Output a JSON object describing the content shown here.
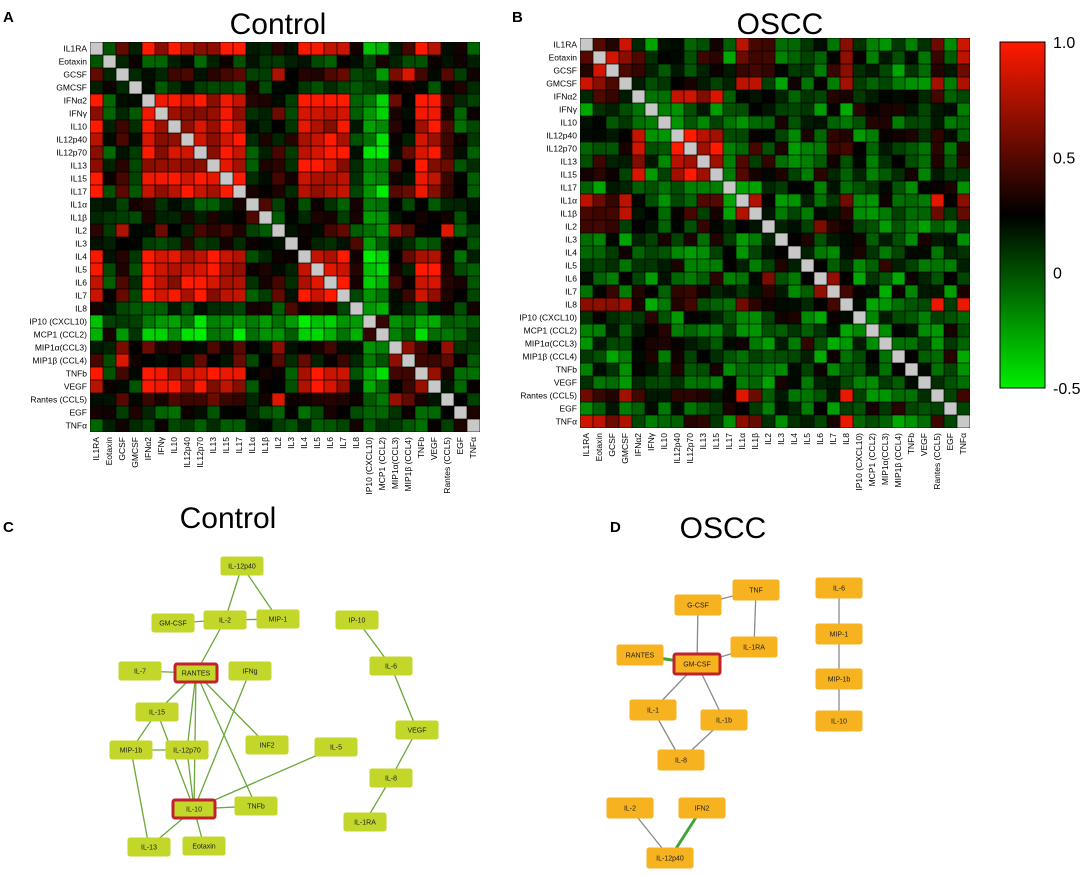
{
  "panels": {
    "A": {
      "label": "A",
      "title": "Control"
    },
    "B": {
      "label": "B",
      "title": "OSCC"
    },
    "C": {
      "label": "C",
      "title": "Control"
    },
    "D": {
      "label": "D",
      "title": "OSCC"
    }
  },
  "colorbar": {
    "ticks": [
      {
        "value": 1.0,
        "label": "1.0"
      },
      {
        "value": 0.5,
        "label": "0.5"
      },
      {
        "value": 0,
        "label": "0"
      },
      {
        "value": -0.5,
        "label": "-0.5"
      }
    ],
    "range": [
      -0.5,
      1.0
    ],
    "colors": {
      "high": "#ff1a00",
      "mid": "#000000",
      "low": "#00ee00",
      "diag": "#c8c8c8"
    }
  },
  "chart_data": [
    {
      "type": "heatmap",
      "title": "Control",
      "labels": [
        "IL1RA",
        "Eotaxin",
        "GCSF",
        "GMCSF",
        "IFNα2",
        "IFNγ",
        "IL10",
        "IL12p40",
        "IL12p70",
        "IL13",
        "IL15",
        "IL17",
        "IL1α",
        "IL1β",
        "IL2",
        "IL3",
        "IL4",
        "IL5",
        "IL6",
        "IL7",
        "IL8",
        "IP10 (CXCL10)",
        "MCP1 (CCL2)",
        "MIP1α(CCL3)",
        "MIP1β (CCL4)",
        "TNFb",
        "VEGF",
        "Rantes (CCL5)",
        "EGF",
        "TNFα"
      ],
      "groups": [
        2,
        0,
        1,
        0,
        2,
        2,
        2,
        2,
        2,
        2,
        2,
        2,
        3,
        3,
        1,
        3,
        2,
        2,
        2,
        2,
        3,
        4,
        4,
        1,
        1,
        2,
        2,
        1,
        0,
        0
      ],
      "group_corr": [
        [
          0.3,
          0.15,
          0.1,
          0.15,
          0.1
        ],
        [
          0.15,
          0.7,
          0.35,
          0.1,
          -0.1
        ],
        [
          0.1,
          0.35,
          0.85,
          0.15,
          -0.3
        ],
        [
          0.15,
          0.1,
          0.15,
          0.35,
          -0.1
        ],
        [
          0.1,
          -0.1,
          -0.3,
          -0.1,
          0.45
        ]
      ],
      "seed": 7,
      "noise": 0.22,
      "range": [
        -0.5,
        1.0
      ]
    },
    {
      "type": "heatmap",
      "title": "OSCC",
      "labels": [
        "IL1RA",
        "Eotaxin",
        "GCSF",
        "GMCSF",
        "IFNα2",
        "IFNγ",
        "IL10",
        "IL12p40",
        "IL12p70",
        "IL13",
        "IL15",
        "IL17",
        "IL1α",
        "IL1β",
        "IL2",
        "IL3",
        "IL4",
        "IL5",
        "IL6",
        "IL7",
        "IL8",
        "IP10 (CXCL10)",
        "MCP1 (CCL2)",
        "MIP1α(CCL3)",
        "MIP1β (CCL4)",
        "TNFb",
        "VEGF",
        "Rantes (CCL5)",
        "EGF",
        "TNFα"
      ],
      "groups": [
        1,
        1,
        1,
        1,
        2,
        0,
        0,
        2,
        2,
        2,
        2,
        0,
        1,
        1,
        3,
        0,
        0,
        0,
        3,
        3,
        1,
        0,
        0,
        0,
        0,
        0,
        0,
        1,
        0,
        1
      ],
      "group_corr": [
        [
          0.1,
          0.0,
          0.05,
          0.0
        ],
        [
          0.0,
          0.65,
          0.2,
          0.15
        ],
        [
          0.05,
          0.2,
          0.8,
          0.15
        ],
        [
          0.0,
          0.15,
          0.15,
          0.45
        ]
      ],
      "seed": 19,
      "noise": 0.3,
      "range": [
        -0.5,
        1.0
      ]
    }
  ],
  "networks": {
    "control": {
      "nodes": [
        {
          "id": "IL-12p40",
          "label": "IL-12p40",
          "hub": false
        },
        {
          "id": "GM-CSF",
          "label": "GM-CSF",
          "hub": false
        },
        {
          "id": "IL-2",
          "label": "IL-2",
          "hub": false
        },
        {
          "id": "MIP-1",
          "label": "MIP-1",
          "hub": false
        },
        {
          "id": "IL-7",
          "label": "IL-7",
          "hub": false
        },
        {
          "id": "RANTES",
          "label": "RANTES",
          "hub": true
        },
        {
          "id": "IFNg",
          "label": "IFNg",
          "hub": false
        },
        {
          "id": "IL-15",
          "label": "IL-15",
          "hub": false
        },
        {
          "id": "MIP-1b",
          "label": "MIP-1b",
          "hub": false
        },
        {
          "id": "IL-12p70",
          "label": "IL-12p70",
          "hub": false
        },
        {
          "id": "INF2",
          "label": "INF2",
          "hub": false
        },
        {
          "id": "IL-5",
          "label": "IL-5",
          "hub": false
        },
        {
          "id": "IL-10",
          "label": "IL-10",
          "hub": true
        },
        {
          "id": "TNFb",
          "label": "TNFb",
          "hub": false
        },
        {
          "id": "IL-13",
          "label": "IL-13",
          "hub": false
        },
        {
          "id": "Eotaxin",
          "label": "Eotaxin",
          "hub": false
        },
        {
          "id": "IP-10",
          "label": "IP-10",
          "hub": false
        },
        {
          "id": "IL-6",
          "label": "IL-6",
          "hub": false
        },
        {
          "id": "VEGF",
          "label": "VEGF",
          "hub": false
        },
        {
          "id": "IL-8",
          "label": "IL-8",
          "hub": false
        },
        {
          "id": "IL-1RA",
          "label": "IL-1RA",
          "hub": false
        }
      ],
      "edges": [
        [
          "IL-12p40",
          "IL-2"
        ],
        [
          "IL-12p40",
          "MIP-1"
        ],
        [
          "IL-2",
          "GM-CSF"
        ],
        [
          "IL-2",
          "MIP-1"
        ],
        [
          "IL-2",
          "RANTES"
        ],
        [
          "IL-7",
          "RANTES"
        ],
        [
          "RANTES",
          "IL-15"
        ],
        [
          "RANTES",
          "IL-12p70"
        ],
        [
          "RANTES",
          "IL-10"
        ],
        [
          "RANTES",
          "INF2"
        ],
        [
          "RANTES",
          "TNFb"
        ],
        [
          "IFNg",
          "IL-10"
        ],
        [
          "IL-15",
          "MIP-1b"
        ],
        [
          "IL-15",
          "IL-10"
        ],
        [
          "MIP-1b",
          "IL-12p70"
        ],
        [
          "MIP-1b",
          "IL-13"
        ],
        [
          "IL-12p70",
          "IL-10"
        ],
        [
          "IL-10",
          "IL-5"
        ],
        [
          "IL-10",
          "TNFb"
        ],
        [
          "IL-10",
          "Eotaxin"
        ],
        [
          "IL-10",
          "IL-13"
        ],
        [
          "IP-10",
          "IL-6"
        ],
        [
          "IL-6",
          "VEGF"
        ],
        [
          "VEGF",
          "IL-8"
        ],
        [
          "IL-8",
          "IL-1RA"
        ]
      ]
    },
    "oscc": {
      "nodes": [
        {
          "id": "G-CSF",
          "label": "G-CSF",
          "hub": false
        },
        {
          "id": "TNF",
          "label": "TNF",
          "hub": false
        },
        {
          "id": "IL-6",
          "label": "IL-6",
          "hub": false
        },
        {
          "id": "RANTES",
          "label": "RANTES",
          "hub": false
        },
        {
          "id": "GM-CSF",
          "label": "GM-CSF",
          "hub": true
        },
        {
          "id": "IL-1RA",
          "label": "IL-1RA",
          "hub": false
        },
        {
          "id": "MIP-1",
          "label": "MIP-1",
          "hub": false
        },
        {
          "id": "MIP-1b",
          "label": "MIP-1b",
          "hub": false
        },
        {
          "id": "IL-1",
          "label": "IL-1",
          "hub": false
        },
        {
          "id": "IL-1b",
          "label": "IL-1b",
          "hub": false
        },
        {
          "id": "IL-10",
          "label": "IL-10",
          "hub": false
        },
        {
          "id": "IL-8",
          "label": "IL-8",
          "hub": false
        },
        {
          "id": "IL-2",
          "label": "IL-2",
          "hub": false
        },
        {
          "id": "IFN2",
          "label": "IFN2",
          "hub": false
        },
        {
          "id": "IL-12p40",
          "label": "IL-12p40",
          "hub": false
        }
      ],
      "edges": [
        [
          "G-CSF",
          "TNF",
          "grey"
        ],
        [
          "G-CSF",
          "GM-CSF",
          "grey"
        ],
        [
          "TNF",
          "IL-1RA",
          "grey"
        ],
        [
          "RANTES",
          "GM-CSF",
          "green"
        ],
        [
          "GM-CSF",
          "IL-1RA",
          "grey"
        ],
        [
          "GM-CSF",
          "IL-1",
          "grey"
        ],
        [
          "GM-CSF",
          "IL-1b",
          "grey"
        ],
        [
          "IL-1",
          "IL-8",
          "grey"
        ],
        [
          "IL-1b",
          "IL-8",
          "grey"
        ],
        [
          "IL-6",
          "MIP-1",
          "grey"
        ],
        [
          "MIP-1",
          "MIP-1b",
          "grey"
        ],
        [
          "MIP-1b",
          "IL-10",
          "grey"
        ],
        [
          "IL-2",
          "IL-12p40",
          "grey"
        ],
        [
          "IFN2",
          "IL-12p40",
          "green"
        ]
      ]
    }
  }
}
